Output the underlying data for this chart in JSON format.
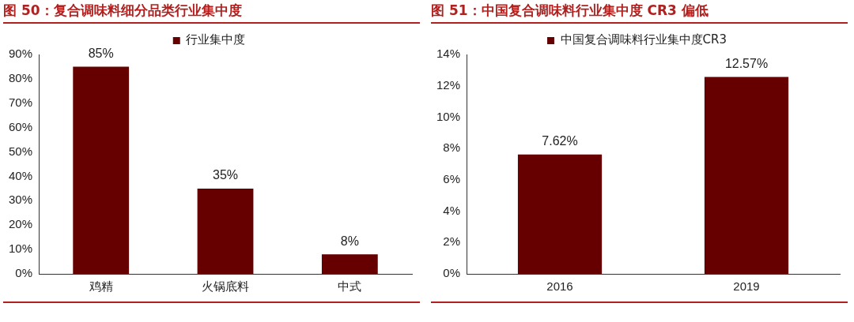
{
  "chart_data": [
    {
      "type": "bar",
      "title": "图 50：复合调味料细分品类行业集中度",
      "categories": [
        "鸡精",
        "火锅底料",
        "中式"
      ],
      "series": [
        {
          "name": "行业集中度",
          "color": "#660000",
          "values": [
            85,
            35,
            8
          ],
          "value_labels": [
            "85%",
            "35%",
            "8%"
          ]
        }
      ],
      "ylim": [
        0,
        90
      ],
      "yticks": [
        {
          "value": 0,
          "label": "0%"
        },
        {
          "value": 10,
          "label": "10%"
        },
        {
          "value": 20,
          "label": "20%"
        },
        {
          "value": 30,
          "label": "30%"
        },
        {
          "value": 40,
          "label": "40%"
        },
        {
          "value": 50,
          "label": "50%"
        },
        {
          "value": 60,
          "label": "60%"
        },
        {
          "value": 70,
          "label": "70%"
        },
        {
          "value": 80,
          "label": "80%"
        },
        {
          "value": 90,
          "label": "90%"
        }
      ],
      "legend": "top",
      "grid": false
    },
    {
      "type": "bar",
      "title": "图 51：中国复合调味料行业集中度 CR3 偏低",
      "categories": [
        "2016",
        "2019"
      ],
      "series": [
        {
          "name": "中国复合调味料行业集中度CR3",
          "color": "#660000",
          "values": [
            7.62,
            12.57
          ],
          "value_labels": [
            "7.62%",
            "12.57%"
          ]
        }
      ],
      "ylim": [
        0,
        14
      ],
      "yticks": [
        {
          "value": 0,
          "label": "0%"
        },
        {
          "value": 2,
          "label": "2%"
        },
        {
          "value": 4,
          "label": "4%"
        },
        {
          "value": 6,
          "label": "6%"
        },
        {
          "value": 8,
          "label": "8%"
        },
        {
          "value": 10,
          "label": "10%"
        },
        {
          "value": 12,
          "label": "12%"
        },
        {
          "value": 14,
          "label": "14%"
        }
      ],
      "legend": "top",
      "grid": false
    }
  ]
}
